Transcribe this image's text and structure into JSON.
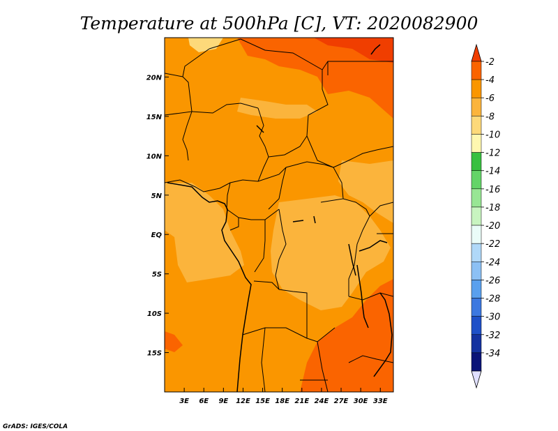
{
  "title": "Temperature at 500hPa [C], VT: 2020082900",
  "credit": "GrADS: IGES/COLA",
  "map": {
    "lon_ticks": [
      "3E",
      "6E",
      "9E",
      "12E",
      "15E",
      "18E",
      "21E",
      "24E",
      "27E",
      "30E",
      "33E"
    ],
    "lon_values": [
      3,
      6,
      9,
      12,
      15,
      18,
      21,
      24,
      27,
      30,
      33
    ],
    "lat_ticks": [
      "20N",
      "15N",
      "10N",
      "5N",
      "EQ",
      "5S",
      "10S",
      "15S"
    ],
    "lat_values": [
      20,
      15,
      10,
      5,
      0,
      -5,
      -10,
      -15
    ],
    "lon_range": [
      0,
      35
    ],
    "lat_range": [
      -20,
      25
    ]
  },
  "colorbar": {
    "labels": [
      "-2",
      "-4",
      "-6",
      "-8",
      "-10",
      "-12",
      "-14",
      "-16",
      "-18",
      "-20",
      "-22",
      "-24",
      "-26",
      "-28",
      "-30",
      "-32",
      "-34"
    ],
    "colors": [
      "#f03e00",
      "#fa6400",
      "#fa9600",
      "#fbb43c",
      "#fdd97a",
      "#fff7b0",
      "#38c040",
      "#64d468",
      "#98e694",
      "#c8f4c0",
      "#eafcf8",
      "#b0d8f8",
      "#8cc0f4",
      "#5aa0ee",
      "#3c78e0",
      "#1e50c8",
      "#1432a0",
      "#0a1478",
      "#e0e0ff"
    ]
  },
  "fields": {
    "c_red": "#f03e00",
    "c_darkorange": "#fa6400",
    "c_orange": "#fa9600",
    "c_lightorange": "#fbb43c",
    "c_yellow": "#fdd97a"
  }
}
